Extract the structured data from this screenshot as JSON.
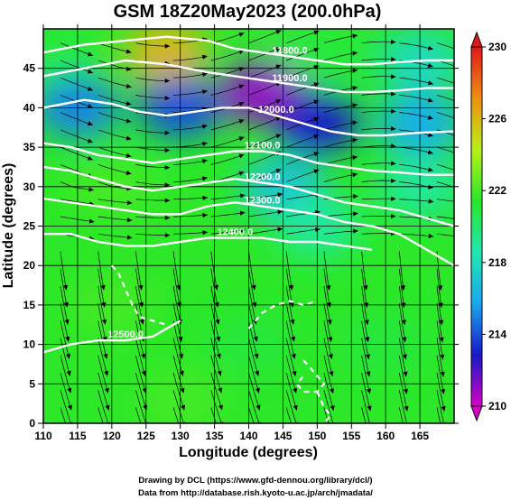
{
  "chart_data": {
    "type": "heatmap",
    "title": "GSM 18Z20May2023 (200.0hPa)",
    "xlabel": "Longitude (degrees)",
    "ylabel": "Latitude (degrees)",
    "xlim": [
      110,
      170
    ],
    "ylim": [
      0,
      50
    ],
    "xticks": [
      110,
      115,
      120,
      125,
      130,
      135,
      140,
      145,
      150,
      155,
      160,
      165
    ],
    "yticks": [
      0,
      5,
      10,
      15,
      20,
      25,
      30,
      35,
      40,
      45
    ],
    "colorbar": {
      "min": 210,
      "max": 230,
      "ticks": [
        210,
        214,
        218,
        222,
        226,
        230
      ],
      "colors": [
        "#d800c8",
        "#1818c8",
        "#18a8f0",
        "#20e8b0",
        "#28e828",
        "#b8f018",
        "#f09010",
        "#e01818"
      ]
    },
    "filled_field_samples": [
      {
        "lon": 112,
        "lat": 47,
        "value": 221
      },
      {
        "lon": 128,
        "lat": 47,
        "value": 226
      },
      {
        "lon": 150,
        "lat": 47,
        "value": 221
      },
      {
        "lon": 165,
        "lat": 46,
        "value": 218
      },
      {
        "lon": 115,
        "lat": 40,
        "value": 215
      },
      {
        "lon": 130,
        "lat": 40,
        "value": 214
      },
      {
        "lon": 142,
        "lat": 42,
        "value": 211
      },
      {
        "lon": 150,
        "lat": 38,
        "value": 213
      },
      {
        "lon": 165,
        "lat": 38,
        "value": 216
      },
      {
        "lon": 120,
        "lat": 30,
        "value": 222
      },
      {
        "lon": 145,
        "lat": 30,
        "value": 217
      },
      {
        "lon": 165,
        "lat": 30,
        "value": 219
      },
      {
        "lon": 150,
        "lat": 25,
        "value": 219
      },
      {
        "lon": 120,
        "lat": 15,
        "value": 222
      },
      {
        "lon": 140,
        "lat": 10,
        "value": 221
      },
      {
        "lon": 160,
        "lat": 10,
        "value": 221
      },
      {
        "lon": 130,
        "lat": 3,
        "value": 222
      }
    ],
    "contours": [
      {
        "value": 11800,
        "label": "11800.0",
        "line": [
          [
            110,
            47
          ],
          [
            116,
            48
          ],
          [
            122,
            48.5
          ],
          [
            128,
            49
          ],
          [
            134,
            48.5
          ],
          [
            138,
            47.5
          ],
          [
            142,
            47
          ],
          [
            146,
            46.5
          ],
          [
            150,
            46
          ],
          [
            154,
            45.5
          ],
          [
            158,
            45.5
          ],
          [
            162,
            45.8
          ],
          [
            166,
            46
          ],
          [
            170,
            46
          ]
        ]
      },
      {
        "value": 11900,
        "label": "11900.0",
        "line": [
          [
            110,
            44
          ],
          [
            116,
            45
          ],
          [
            122,
            46
          ],
          [
            128,
            45.5
          ],
          [
            134,
            44.5
          ],
          [
            138,
            44
          ],
          [
            142,
            43.5
          ],
          [
            146,
            43
          ],
          [
            150,
            42.5
          ],
          [
            154,
            42
          ],
          [
            158,
            42
          ],
          [
            162,
            42.2
          ],
          [
            166,
            42.5
          ],
          [
            170,
            42.5
          ]
        ]
      },
      {
        "value": 12000,
        "label": "12000.0",
        "line": [
          [
            110,
            40
          ],
          [
            116,
            41
          ],
          [
            120,
            40.5
          ],
          [
            124,
            39.5
          ],
          [
            128,
            39
          ],
          [
            132,
            39.5
          ],
          [
            136,
            40
          ],
          [
            140,
            40
          ],
          [
            144,
            39
          ],
          [
            148,
            38
          ],
          [
            152,
            37
          ],
          [
            156,
            36.5
          ],
          [
            160,
            36.5
          ],
          [
            164,
            36.8
          ],
          [
            170,
            37
          ]
        ]
      },
      {
        "value": 12100,
        "label": "12100.0",
        "line": [
          [
            110,
            35.5
          ],
          [
            114,
            35
          ],
          [
            118,
            34
          ],
          [
            122,
            33.5
          ],
          [
            126,
            33
          ],
          [
            130,
            33.5
          ],
          [
            134,
            34
          ],
          [
            138,
            34.5
          ],
          [
            142,
            34.5
          ],
          [
            146,
            34
          ],
          [
            150,
            33
          ],
          [
            154,
            32.5
          ],
          [
            158,
            32
          ],
          [
            162,
            31.8
          ],
          [
            166,
            31.5
          ],
          [
            170,
            31.5
          ]
        ]
      },
      {
        "value": 12200,
        "label": "12200.0",
        "line": [
          [
            110,
            32.5
          ],
          [
            114,
            32
          ],
          [
            118,
            31
          ],
          [
            122,
            30
          ],
          [
            126,
            29.5
          ],
          [
            130,
            30
          ],
          [
            134,
            30.5
          ],
          [
            138,
            31
          ],
          [
            142,
            30.5
          ],
          [
            146,
            30
          ],
          [
            150,
            29
          ],
          [
            154,
            28
          ],
          [
            158,
            27.5
          ],
          [
            162,
            27
          ],
          [
            166,
            26
          ],
          [
            170,
            25
          ]
        ]
      },
      {
        "value": 12300,
        "label": "12300.0",
        "line": [
          [
            110,
            28.5
          ],
          [
            114,
            28
          ],
          [
            118,
            27.5
          ],
          [
            122,
            27
          ],
          [
            126,
            26.5
          ],
          [
            130,
            26.5
          ],
          [
            134,
            27.5
          ],
          [
            138,
            28
          ],
          [
            142,
            27.5
          ],
          [
            146,
            27
          ],
          [
            150,
            26.5
          ],
          [
            154,
            25.5
          ],
          [
            158,
            25
          ],
          [
            162,
            24
          ],
          [
            166,
            22
          ],
          [
            170,
            20
          ]
        ]
      },
      {
        "value": 12400,
        "label": "12400.0",
        "line": [
          [
            110,
            24
          ],
          [
            114,
            24
          ],
          [
            118,
            23
          ],
          [
            122,
            22.5
          ],
          [
            126,
            22.5
          ],
          [
            130,
            23
          ],
          [
            134,
            23.5
          ],
          [
            138,
            23.5
          ],
          [
            142,
            23.5
          ],
          [
            146,
            23
          ],
          [
            150,
            23
          ],
          [
            154,
            22.5
          ],
          [
            158,
            22
          ]
        ]
      },
      {
        "value": 12500,
        "label": "12500.0",
        "line": [
          [
            110,
            9
          ],
          [
            114,
            10
          ],
          [
            118,
            10.5
          ],
          [
            122,
            10.5
          ],
          [
            126,
            11
          ],
          [
            128,
            12
          ],
          [
            130,
            13
          ]
        ]
      }
    ],
    "dashed_contours": [
      {
        "line": [
          [
            120,
            20
          ],
          [
            121,
            19
          ],
          [
            122,
            17
          ],
          [
            123,
            15
          ],
          [
            124,
            13.5
          ],
          [
            126,
            13
          ],
          [
            128,
            12.5
          ]
        ]
      },
      {
        "line": [
          [
            140,
            12
          ],
          [
            142,
            14
          ],
          [
            144,
            15
          ],
          [
            146,
            15.5
          ],
          [
            148,
            15
          ],
          [
            150,
            15.5
          ]
        ]
      },
      {
        "line": [
          [
            148,
            8
          ],
          [
            149,
            7
          ],
          [
            150,
            6
          ],
          [
            151,
            5
          ],
          [
            150,
            4
          ],
          [
            148,
            4
          ],
          [
            147,
            5
          ],
          [
            148,
            6
          ]
        ]
      },
      {
        "line": [
          [
            150,
            4
          ],
          [
            151,
            2
          ],
          [
            152,
            1
          ],
          [
            151,
            0
          ]
        ]
      }
    ],
    "wind_field": "streamlines with arrows",
    "grid": true
  },
  "credits": {
    "line1": "Drawing by DCL (https://www.gfd-dennou.org/library/dcl/)",
    "line2": "Data from http://database.rish.kyoto-u.ac.jp/arch/jmadata/"
  }
}
